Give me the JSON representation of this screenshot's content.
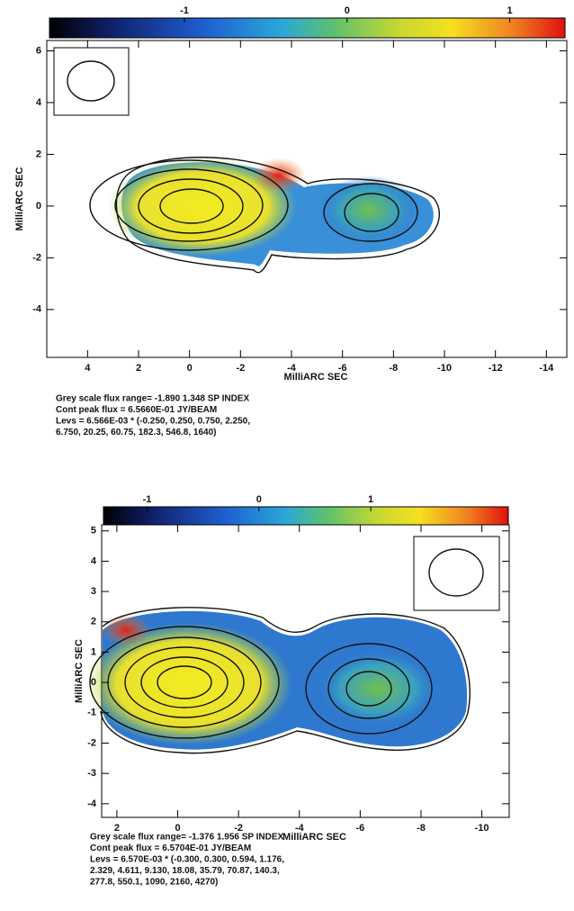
{
  "chart_data": [
    {
      "type": "map",
      "xlabel": "MilliARC SEC",
      "ylabel": "MilliARC SEC",
      "xlim": [
        5.6,
        -14.8
      ],
      "xticks": [
        4,
        2,
        0,
        -2,
        -4,
        -6,
        -8,
        -10,
        -12,
        -14
      ],
      "ylim": [
        -5.85,
        6.4
      ],
      "yticks": [
        6,
        4,
        2,
        0,
        -2,
        -4
      ],
      "clim": [
        -1.83,
        1.34
      ],
      "cticks": [
        -1,
        0,
        1
      ],
      "caption": [
        "Grey scale flux range= -1.890 1.348 SP INDEX",
        "Cont peak flux =  6.5660E-01 JY/BEAM",
        "Levs = 6.566E-03 * (-0.250, 0.250, 0.750, 2.250,",
        "6.750, 20.25, 60.75, 182.3, 546.8, 1640)"
      ]
    },
    {
      "type": "map",
      "xlabel": "MilliARC SEC",
      "ylabel": "MilliARC SEC",
      "xlim": [
        2.5,
        -10.9
      ],
      "xticks": [
        2,
        0,
        -2,
        -4,
        -6,
        -8,
        -10
      ],
      "ylim": [
        -4.45,
        5.2
      ],
      "yticks": [
        5,
        4,
        3,
        2,
        1,
        0,
        -1,
        -2,
        -3,
        -4
      ],
      "clim": [
        -1.39,
        2.23
      ],
      "cticks": [
        -1,
        0,
        1
      ],
      "caption": [
        "Grey scale flux range= -1.376 1.956 SP INDEX",
        "Cont peak flux =  6.5704E-01 JY/BEAM",
        "Levs = 6.570E-03 * (-0.300, 0.300, 0.594, 1.176,",
        "2.329, 4.611, 9.130, 18.08, 35.79, 70.87, 140.3,",
        "277.8, 550.1, 1090, 2160, 4270)"
      ]
    }
  ]
}
